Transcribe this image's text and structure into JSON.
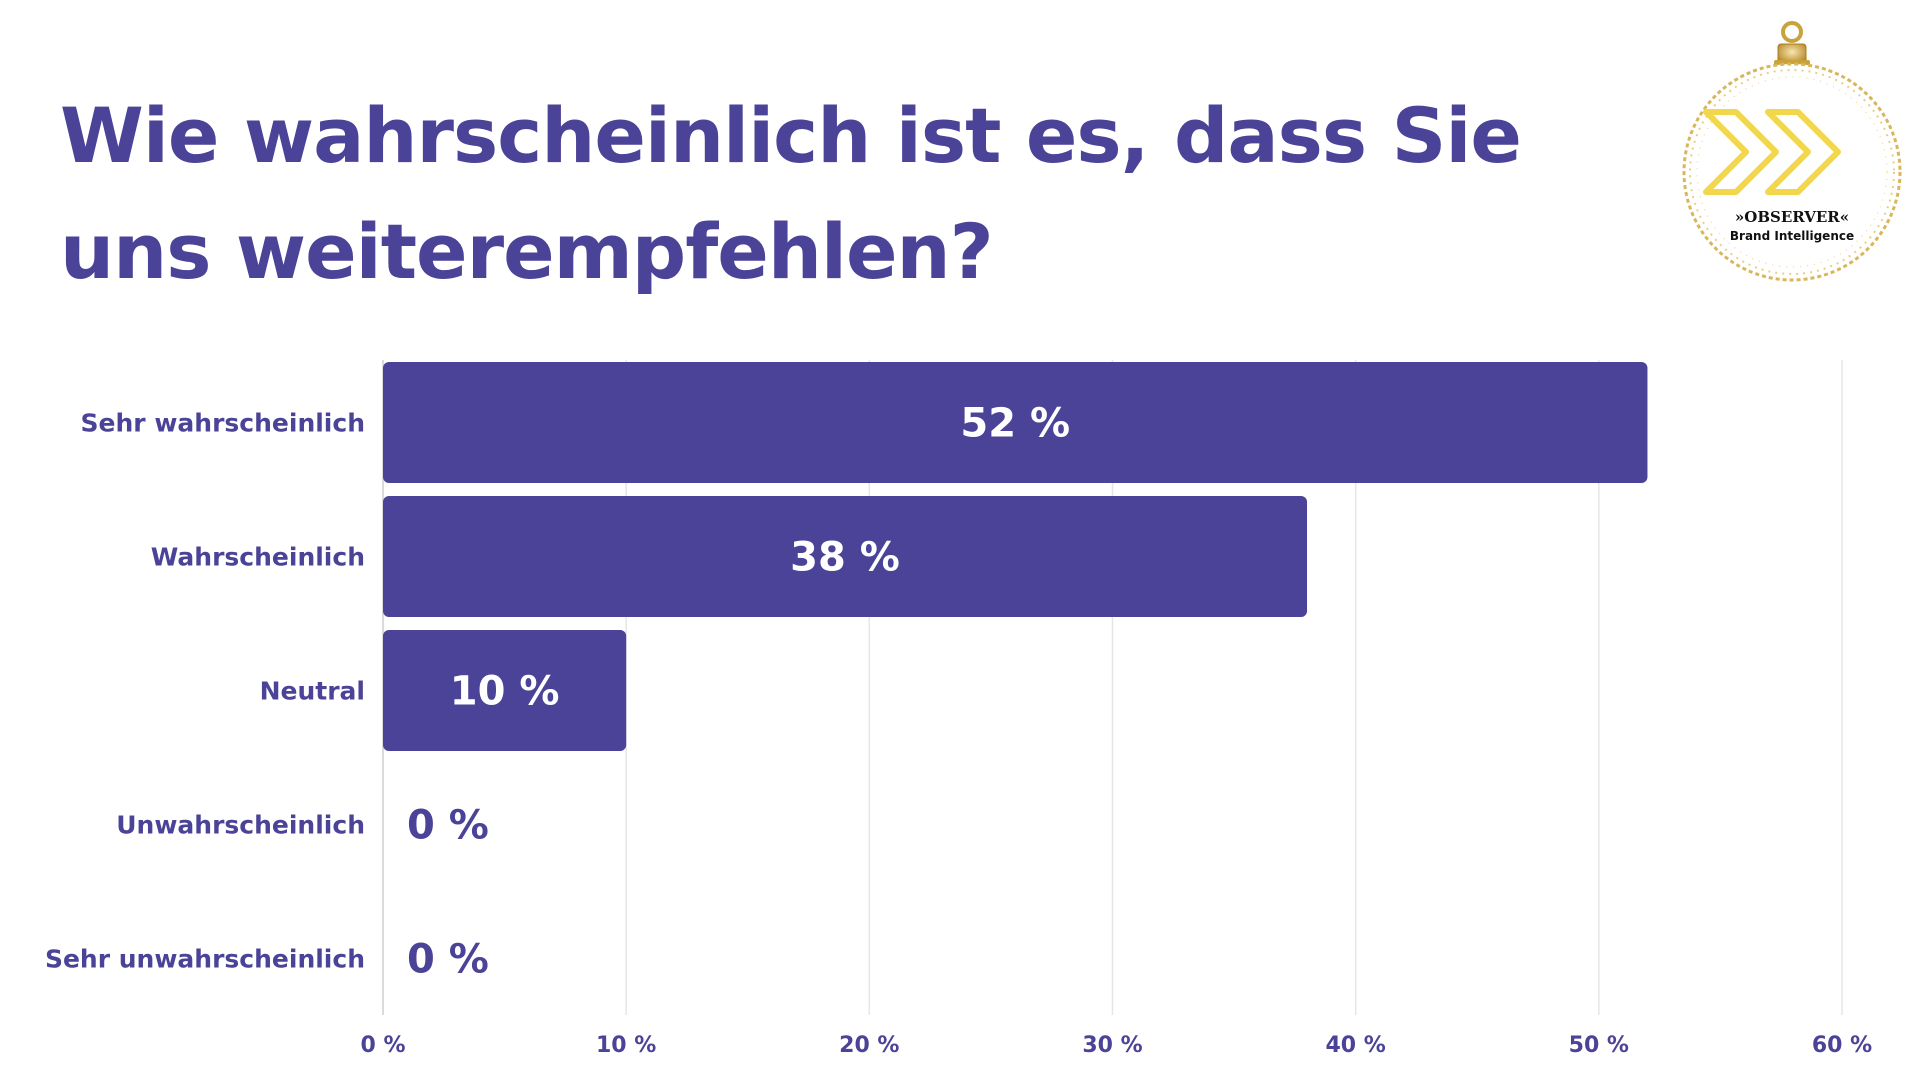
{
  "title": "Wie wahrscheinlich ist es, dass Sie uns weiterempfehlen?",
  "logo": {
    "brand": "»OBSERVER«",
    "tagline": "Brand Intelligence"
  },
  "colors": {
    "bar": "#4b4397",
    "text": "#4b4397",
    "value_inside": "#ffffff",
    "grid": "#e6e6e6",
    "logo_gold": "#c9a23a",
    "logo_yellow": "#f2d64b"
  },
  "chart_data": {
    "type": "bar",
    "orientation": "horizontal",
    "title": "Wie wahrscheinlich ist es, dass Sie uns weiterempfehlen?",
    "categories": [
      "Sehr wahrscheinlich",
      "Wahrscheinlich",
      "Neutral",
      "Unwahrscheinlich",
      "Sehr unwahrscheinlich"
    ],
    "values": [
      52,
      38,
      10,
      0,
      0
    ],
    "value_labels": [
      "52 %",
      "38 %",
      "10 %",
      "0 %",
      "0 %"
    ],
    "xlim": [
      0,
      60
    ],
    "x_ticks": [
      0,
      10,
      20,
      30,
      40,
      50,
      60
    ],
    "x_tick_labels": [
      "0 %",
      "10 %",
      "20 %",
      "30 %",
      "40 %",
      "50 %",
      "60 %"
    ],
    "grid": true,
    "legend": "none"
  }
}
